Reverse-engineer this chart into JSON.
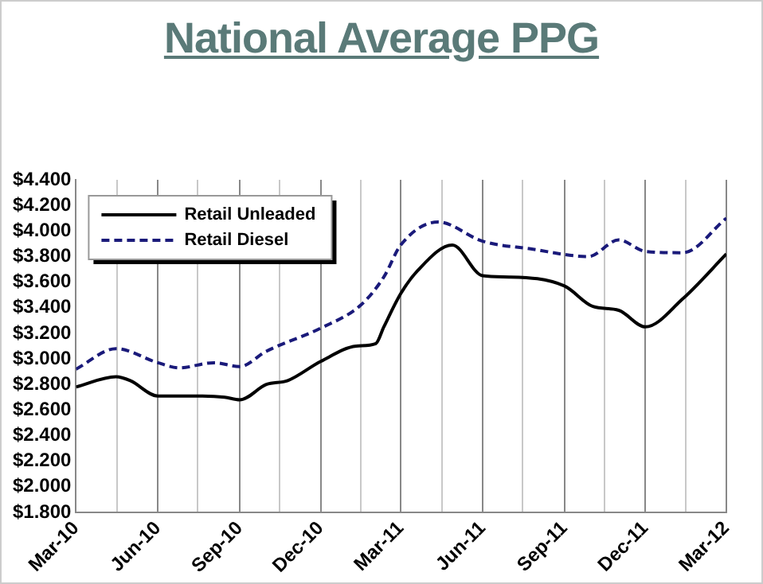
{
  "chart_data": {
    "type": "line",
    "title": "National Average PPG",
    "x": [
      "2010-03",
      "2010-04-15",
      "2010-05",
      "2010-06",
      "2010-07-15",
      "2010-08-15",
      "2010-09",
      "2010-10",
      "2010-10-25",
      "2010-12",
      "2011-01-10",
      "2011-02",
      "2011-02-10",
      "2011-03",
      "2011-03-20",
      "2011-04-28",
      "2011-06",
      "2011-07",
      "2011-09",
      "2011-10-03",
      "2011-11",
      "2011-12",
      "2012-01-12",
      "2012-03"
    ],
    "series": [
      {
        "name": "Retail Unleaded",
        "color": "#000000",
        "line_style": "solid",
        "values": [
          2.78,
          2.86,
          2.83,
          2.71,
          2.71,
          2.7,
          2.68,
          2.8,
          2.83,
          2.98,
          3.1,
          3.12,
          3.25,
          3.51,
          3.69,
          3.89,
          3.65,
          3.64,
          3.57,
          3.41,
          3.38,
          3.25,
          3.47,
          3.82
        ]
      },
      {
        "name": "Retail Diesel",
        "color": "#1a1a7a",
        "line_style": "dashed",
        "x": [
          "2010-03",
          "2010-04-15",
          "2010-06",
          "2010-06-25",
          "2010-08-03",
          "2010-09",
          "2010-10",
          "2010-12",
          "2011-01-15",
          "2011-02-10",
          "2011-03",
          "2011-04-12",
          "2011-06",
          "2011-07-25",
          "2011-09-28",
          "2011-11",
          "2011-12",
          "2012-01-12",
          "2012-03"
        ],
        "values": [
          2.92,
          3.08,
          2.97,
          2.93,
          2.97,
          2.94,
          3.06,
          3.24,
          3.42,
          3.64,
          3.89,
          4.07,
          3.92,
          3.86,
          3.8,
          3.93,
          3.84,
          3.83,
          4.1
        ]
      }
    ],
    "xlim": [
      "2010-03",
      "2012-03"
    ],
    "xticks": [
      {
        "value": "2010-03",
        "label": "Mar-10"
      },
      {
        "value": "2010-04-16",
        "label": null
      },
      {
        "value": "2010-06",
        "label": "Jun-10"
      },
      {
        "value": "2010-07-16",
        "label": null
      },
      {
        "value": "2010-09",
        "label": "Sep-10"
      },
      {
        "value": "2010-10-16",
        "label": null
      },
      {
        "value": "2010-12",
        "label": "Dec-10"
      },
      {
        "value": "2011-01-15",
        "label": null
      },
      {
        "value": "2011-03",
        "label": "Mar-11"
      },
      {
        "value": "2011-04-16",
        "label": null
      },
      {
        "value": "2011-06",
        "label": "Jun-11"
      },
      {
        "value": "2011-07-16",
        "label": null
      },
      {
        "value": "2011-09",
        "label": "Sep-11"
      },
      {
        "value": "2011-10-16",
        "label": null
      },
      {
        "value": "2011-12",
        "label": "Dec-11"
      },
      {
        "value": "2012-01-15",
        "label": null
      },
      {
        "value": "2012-03",
        "label": "Mar-12"
      }
    ],
    "ylim": [
      1.8,
      4.4
    ],
    "yticks": [
      {
        "value": 1.8,
        "label": "$1.800"
      },
      {
        "value": 2.0,
        "label": "$2.000"
      },
      {
        "value": 2.2,
        "label": "$2.200"
      },
      {
        "value": 2.4,
        "label": "$2.400"
      },
      {
        "value": 2.6,
        "label": "$2.600"
      },
      {
        "value": 2.8,
        "label": "$2.800"
      },
      {
        "value": 3.0,
        "label": "$3.000"
      },
      {
        "value": 3.2,
        "label": "$3.200"
      },
      {
        "value": 3.4,
        "label": "$3.400"
      },
      {
        "value": 3.6,
        "label": "$3.600"
      },
      {
        "value": 3.8,
        "label": "$3.800"
      },
      {
        "value": 4.0,
        "label": "$4.000"
      },
      {
        "value": 4.2,
        "label": "$4.200"
      },
      {
        "value": 4.4,
        "label": "$4.400"
      }
    ],
    "grid": "x",
    "legend": "top left",
    "marker": "none"
  }
}
